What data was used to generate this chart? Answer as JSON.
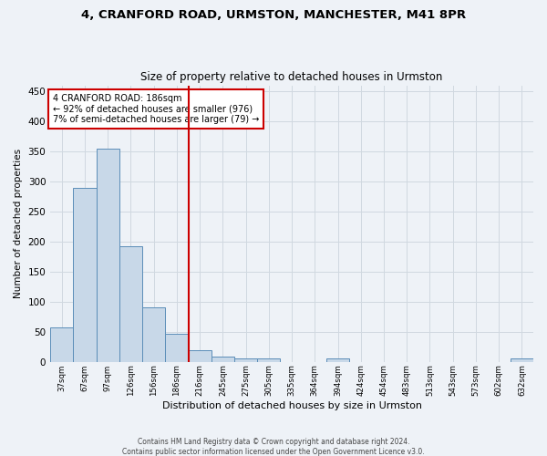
{
  "title_line1": "4, CRANFORD ROAD, URMSTON, MANCHESTER, M41 8PR",
  "title_line2": "Size of property relative to detached houses in Urmston",
  "xlabel": "Distribution of detached houses by size in Urmston",
  "ylabel": "Number of detached properties",
  "footer": "Contains HM Land Registry data © Crown copyright and database right 2024.\nContains public sector information licensed under the Open Government Licence v3.0.",
  "bar_labels": [
    "37sqm",
    "67sqm",
    "97sqm",
    "126sqm",
    "156sqm",
    "186sqm",
    "216sqm",
    "245sqm",
    "275sqm",
    "305sqm",
    "335sqm",
    "364sqm",
    "394sqm",
    "424sqm",
    "454sqm",
    "483sqm",
    "513sqm",
    "543sqm",
    "573sqm",
    "602sqm",
    "632sqm"
  ],
  "bar_values": [
    57,
    290,
    354,
    193,
    91,
    46,
    20,
    9,
    5,
    5,
    0,
    0,
    5,
    0,
    0,
    0,
    0,
    0,
    0,
    0,
    5
  ],
  "bar_color": "#c8d8e8",
  "bar_edge_color": "#5b8db8",
  "reference_line_idx": 5,
  "annotation_title": "4 CRANFORD ROAD: 186sqm",
  "annotation_line1": "← 92% of detached houses are smaller (976)",
  "annotation_line2": "7% of semi-detached houses are larger (79) →",
  "annotation_box_color": "#ffffff",
  "annotation_box_edge_color": "#cc0000",
  "vline_color": "#cc0000",
  "grid_color": "#d0d8e0",
  "background_color": "#eef2f7",
  "ylim": [
    0,
    460
  ],
  "yticks": [
    0,
    50,
    100,
    150,
    200,
    250,
    300,
    350,
    400,
    450
  ]
}
